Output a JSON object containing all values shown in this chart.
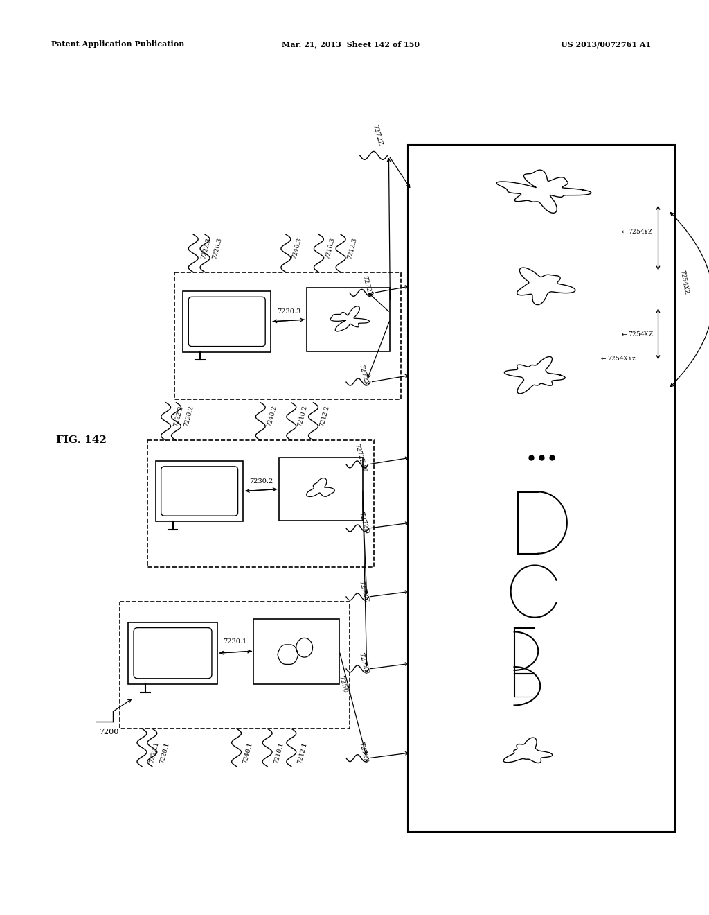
{
  "bg_color": "#ffffff",
  "header_left": "Patent Application Publication",
  "header_mid": "Mar. 21, 2013  Sheet 142 of 150",
  "header_right": "US 2013/0072761 A1",
  "fig_label": "FIG. 142"
}
